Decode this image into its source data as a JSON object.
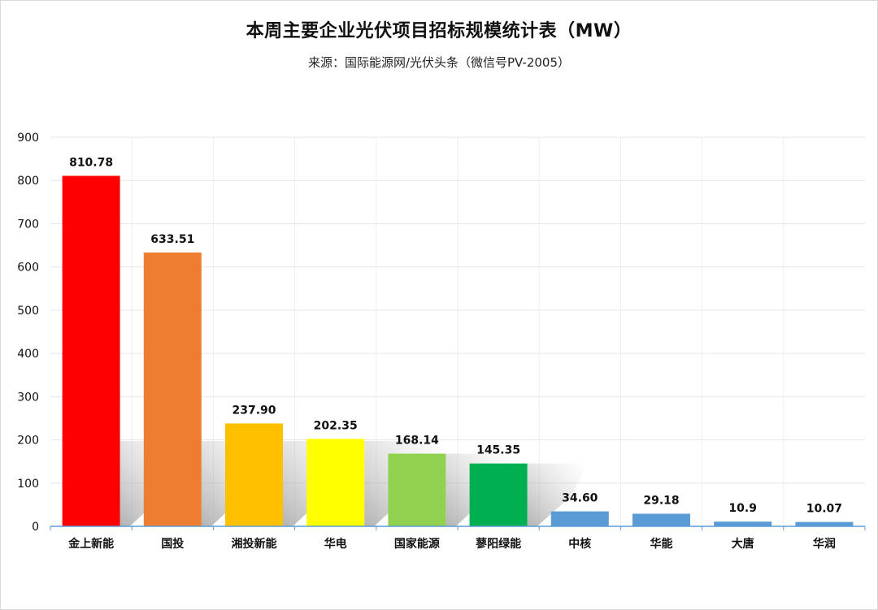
{
  "chart_data": {
    "type": "bar",
    "title": "本周主要企业光伏项目招标规模统计表（MW）",
    "subtitle": "来源：国际能源网/光伏头条（微信号PV-2005）",
    "categories": [
      "金上新能",
      "国投",
      "湘投新能",
      "华电",
      "国家能源",
      "蓼阳绿能",
      "中核",
      "华能",
      "大唐",
      "华润"
    ],
    "values": [
      810.78,
      633.51,
      237.9,
      202.35,
      168.14,
      145.35,
      34.6,
      29.18,
      10.9,
      10.07
    ],
    "data_labels": [
      "810.78",
      "633.51",
      "237.90",
      "202.35",
      "168.14",
      "145.35",
      "34.60",
      "29.18",
      "10.9",
      "10.07"
    ],
    "colors": [
      "#ff0000",
      "#ed7d31",
      "#ffc000",
      "#ffff00",
      "#92d050",
      "#00b050",
      "#5b9bd5",
      "#5b9bd5",
      "#5b9bd5",
      "#5b9bd5"
    ],
    "ylim": [
      0,
      900
    ],
    "yticks": [
      0,
      100,
      200,
      300,
      400,
      500,
      600,
      700,
      800,
      900
    ],
    "xlabel": "",
    "ylabel": "",
    "grid": true,
    "legend": "none"
  }
}
